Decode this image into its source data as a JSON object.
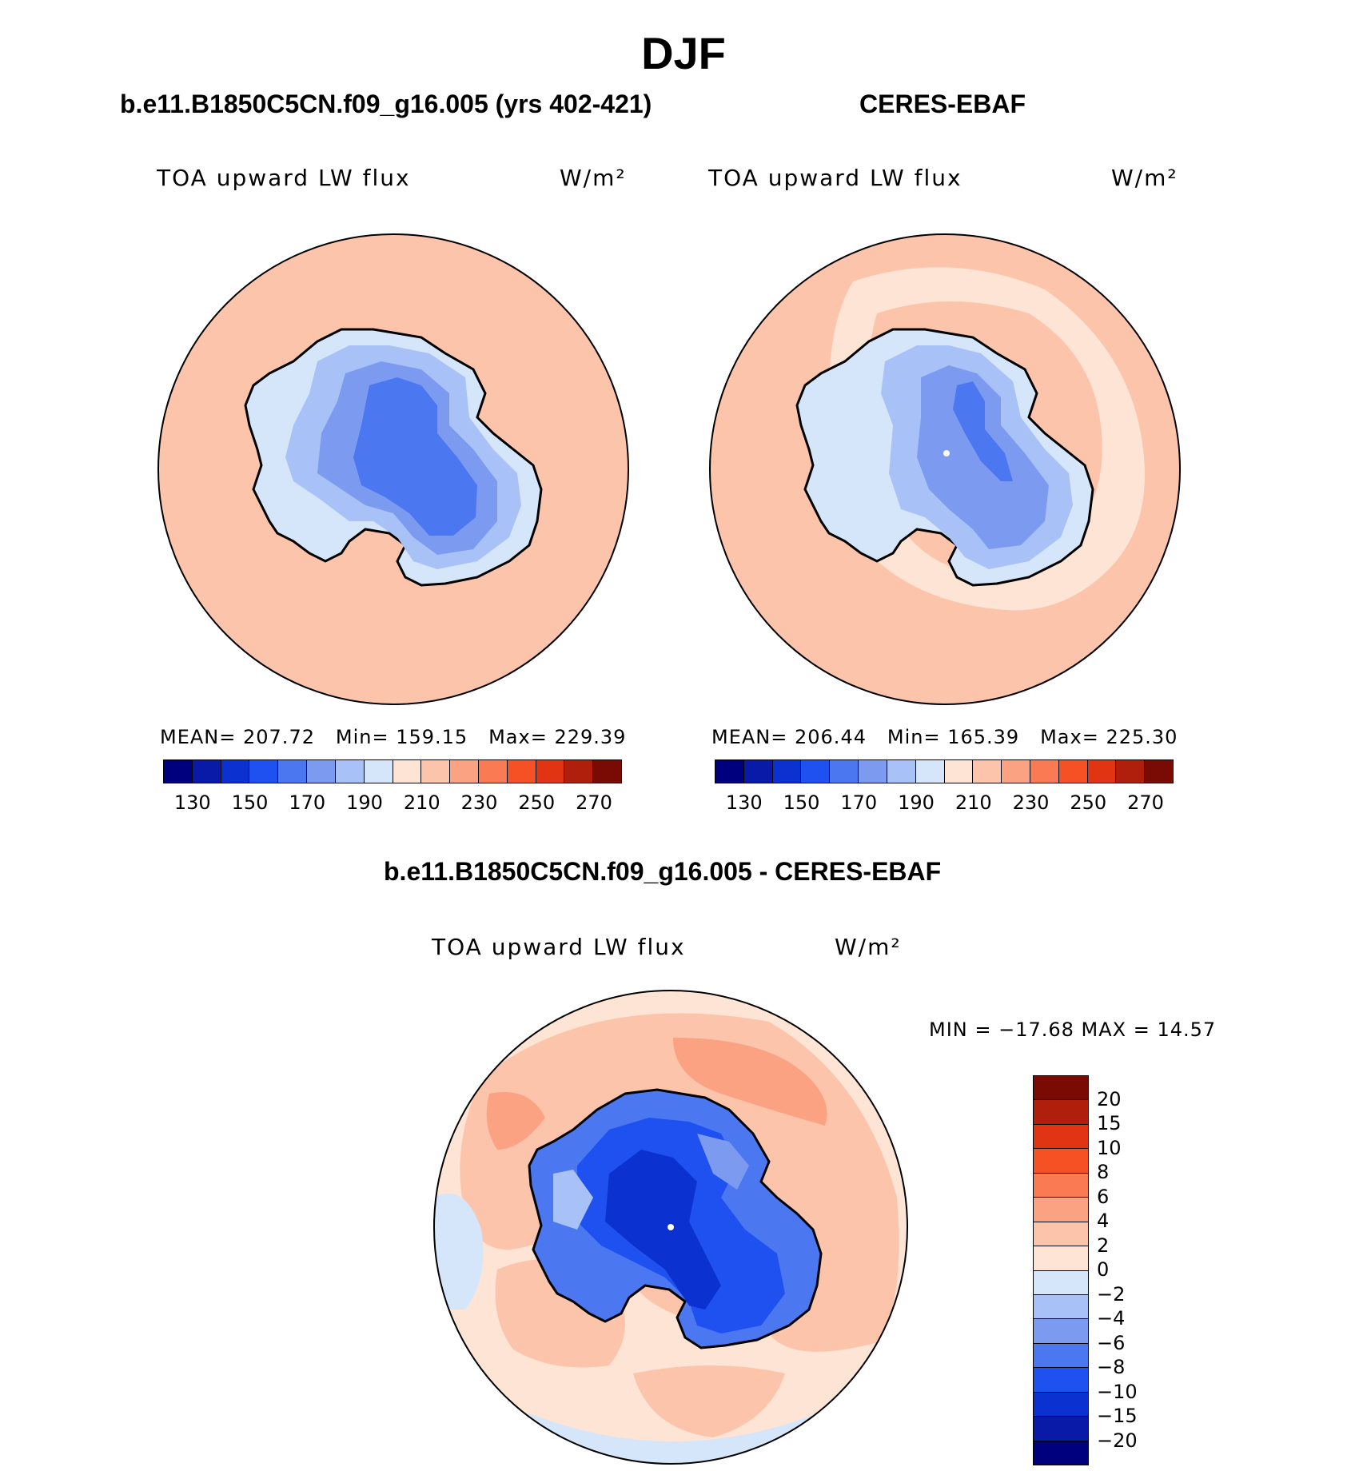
{
  "figure": {
    "title": "DJF"
  },
  "panels": {
    "model": {
      "title": "b.e11.B1850C5CN.f09_g16.005 (yrs 402-421)",
      "variable": "TOA upward LW flux",
      "units": "W/m²",
      "stats": {
        "mean_label": "MEAN=",
        "mean": "207.72",
        "min_label": "Min=",
        "min": "159.15",
        "max_label": "Max=",
        "max": "229.39"
      }
    },
    "obs": {
      "title": "CERES-EBAF",
      "variable": "TOA upward LW flux",
      "units": "W/m²",
      "stats": {
        "mean_label": "MEAN=",
        "mean": "206.44",
        "min_label": "Min=",
        "min": "165.39",
        "max_label": "Max=",
        "max": "225.30"
      }
    },
    "diff": {
      "title": "b.e11.B1850C5CN.f09_g16.005 - CERES-EBAF",
      "variable": "TOA upward LW flux",
      "units": "W/m²",
      "minmax": "MIN = −17.68 MAX =   14.57"
    }
  },
  "colorbars": {
    "abs": {
      "ticks": [
        "130",
        "150",
        "170",
        "190",
        "210",
        "230",
        "250",
        "270"
      ],
      "colors": [
        "#00007f",
        "#0a1aa8",
        "#0b32d0",
        "#1f50f0",
        "#4b77f0",
        "#7c9bf0",
        "#a8c1f7",
        "#d5e6fb",
        "#fde4d4",
        "#fdc4ac",
        "#fba283",
        "#f97a53",
        "#f65025",
        "#e03412",
        "#b01e0c",
        "#7a0a04"
      ]
    },
    "diff": {
      "ticks": [
        "20",
        "15",
        "10",
        "8",
        "6",
        "4",
        "2",
        "0",
        "−2",
        "−4",
        "−6",
        "−8",
        "−10",
        "−15",
        "−20"
      ],
      "colors": [
        "#7a0a04",
        "#b01e0c",
        "#e03412",
        "#f65025",
        "#f97a53",
        "#fba283",
        "#fdc4ac",
        "#fde4d4",
        "#d5e6fb",
        "#a8c1f7",
        "#7c9bf0",
        "#4b77f0",
        "#1f50f0",
        "#0b32d0",
        "#0a1aa8",
        "#00007f"
      ]
    }
  }
}
